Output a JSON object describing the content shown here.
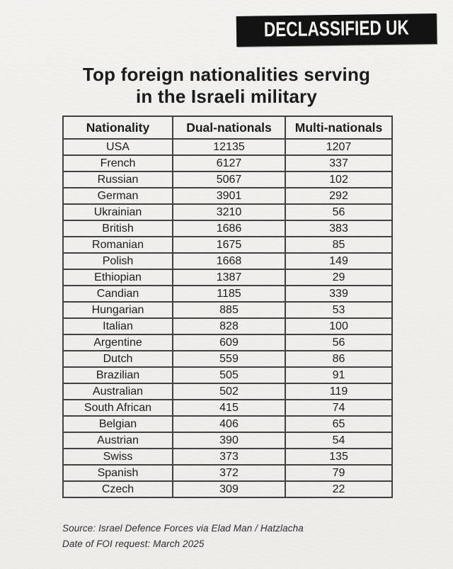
{
  "logo": {
    "text": "DECLASSIFIED UK"
  },
  "title": {
    "line1": "Top foreign nationalities serving",
    "line2": "in the Israeli military"
  },
  "table": {
    "headers": [
      "Nationality",
      "Dual-nationals",
      "Multi-nationals"
    ],
    "rows": [
      [
        "USA",
        "12135",
        "1207"
      ],
      [
        "French",
        "6127",
        "337"
      ],
      [
        "Russian",
        "5067",
        "102"
      ],
      [
        "German",
        "3901",
        "292"
      ],
      [
        "Ukrainian",
        "3210",
        "56"
      ],
      [
        "British",
        "1686",
        "383"
      ],
      [
        "Romanian",
        "1675",
        "85"
      ],
      [
        "Polish",
        "1668",
        "149"
      ],
      [
        "Ethiopian",
        "1387",
        "29"
      ],
      [
        "Candian",
        "1185",
        "339"
      ],
      [
        "Hungarian",
        "885",
        "53"
      ],
      [
        "Italian",
        "828",
        "100"
      ],
      [
        "Argentine",
        "609",
        "56"
      ],
      [
        "Dutch",
        "559",
        "86"
      ],
      [
        "Brazilian",
        "505",
        "91"
      ],
      [
        "Australian",
        "502",
        "119"
      ],
      [
        "South African",
        "415",
        "74"
      ],
      [
        "Belgian",
        "406",
        "65"
      ],
      [
        "Austrian",
        "390",
        "54"
      ],
      [
        "Swiss",
        "373",
        "135"
      ],
      [
        "Spanish",
        "372",
        "79"
      ],
      [
        "Czech",
        "309",
        "22"
      ]
    ]
  },
  "footer": {
    "source": "Source: Israel Defence Forces via Elad Man / Hatzlacha",
    "date": "Date of FOI request: March 2025"
  },
  "colors": {
    "paper": "#f2f1ed",
    "ink": "#1c1c1c",
    "border": "#414141",
    "logo_bg": "#131313",
    "logo_text": "#f5f4f0"
  },
  "chart_data": {
    "type": "table",
    "title": "Top foreign nationalities serving in the Israeli military",
    "columns": [
      "Nationality",
      "Dual-nationals",
      "Multi-nationals"
    ],
    "categories": [
      "USA",
      "French",
      "Russian",
      "German",
      "Ukrainian",
      "British",
      "Romanian",
      "Polish",
      "Ethiopian",
      "Candian",
      "Hungarian",
      "Italian",
      "Argentine",
      "Dutch",
      "Brazilian",
      "Australian",
      "South African",
      "Belgian",
      "Austrian",
      "Swiss",
      "Spanish",
      "Czech"
    ],
    "series": [
      {
        "name": "Dual-nationals",
        "values": [
          12135,
          6127,
          5067,
          3901,
          3210,
          1686,
          1675,
          1668,
          1387,
          1185,
          885,
          828,
          609,
          559,
          505,
          502,
          415,
          406,
          390,
          373,
          372,
          309
        ]
      },
      {
        "name": "Multi-nationals",
        "values": [
          1207,
          337,
          102,
          292,
          56,
          383,
          85,
          149,
          29,
          339,
          53,
          100,
          56,
          86,
          91,
          119,
          74,
          65,
          54,
          135,
          79,
          22
        ]
      }
    ],
    "annotations": [
      "Source: Israel Defence Forces via Elad Man / Hatzlacha",
      "Date of FOI request: March 2025"
    ]
  }
}
